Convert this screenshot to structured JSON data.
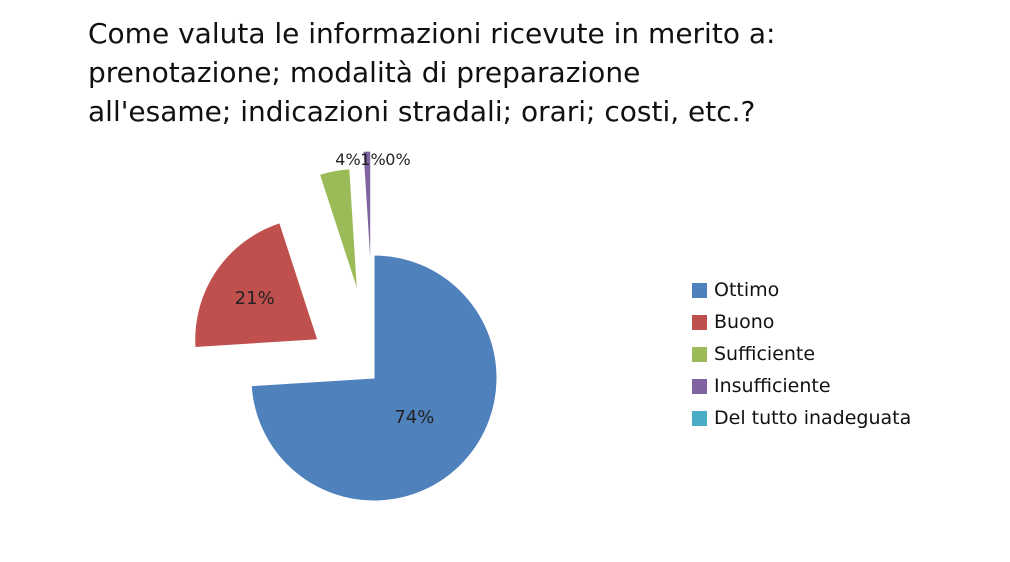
{
  "chart_data": {
    "type": "pie",
    "title_lines": [
      "Come valuta le informazioni ricevute in merito a:",
      "prenotazione;  modalità di preparazione",
      "all'esame; indicazioni stradali; orari; costi, etc.?"
    ],
    "categories": [
      "Ottimo",
      "Buono",
      "Sufficiente",
      "Insufficiente",
      "Del tutto inadeguata"
    ],
    "values": [
      74,
      21,
      4,
      1,
      0
    ],
    "data_labels": [
      "74%",
      "21%",
      "4%",
      "1%",
      "0%"
    ],
    "colors": [
      "#4F81BD",
      "#C0504D",
      "#9BBB59",
      "#8064A2",
      "#4BACC6"
    ],
    "exploded": true,
    "legend_position": "right"
  }
}
